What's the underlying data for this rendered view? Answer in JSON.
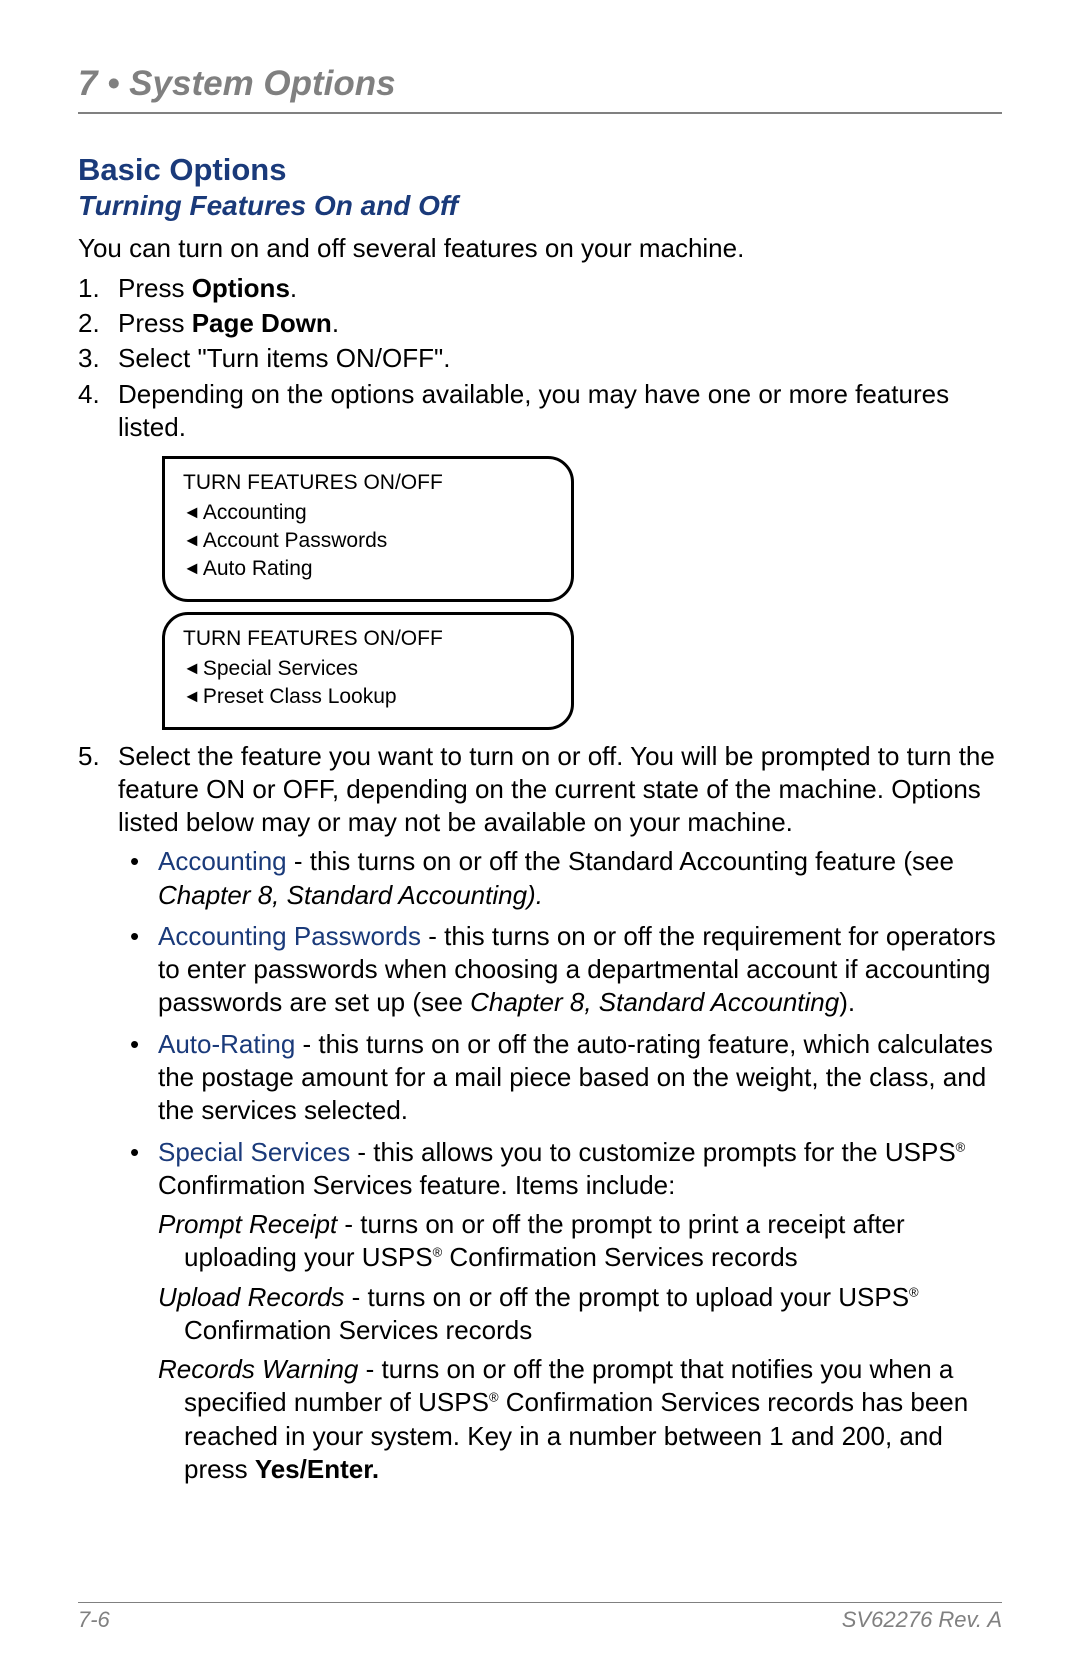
{
  "colors": {
    "gray": "#808080",
    "navy": "#1a3a7a",
    "black": "#000000",
    "bg": "#ffffff"
  },
  "typography": {
    "body_font": "Arial",
    "chapter_fontsize": 35,
    "section_fontsize": 31,
    "subsection_fontsize": 28,
    "body_fontsize": 26,
    "panel_fontsize": 21,
    "footer_fontsize": 22
  },
  "chapter_title": "7 • System Options",
  "section_title": "Basic Options",
  "subsection_title": "Turning Features On and Off",
  "intro": "You can turn on and off several features on your machine.",
  "steps": {
    "s1_a": "Press ",
    "s1_b": "Options",
    "s1_c": ".",
    "s2_a": "Press ",
    "s2_b": "Page Down",
    "s2_c": ".",
    "s3": "Select \"Turn items ON/OFF\".",
    "s4": "Depending on the options available, you may have one or more features listed.",
    "s5": "Select the feature you want to turn on or off. You will be prompted to turn the feature ON or OFF, depending on the current state of the machine. Options listed below may or may not be available on your machine."
  },
  "panel1": {
    "title": "TURN FEATURES ON/OFF",
    "items": [
      "Accounting",
      "Account Passwords",
      "Auto Rating"
    ]
  },
  "panel2": {
    "title": "TURN FEATURES ON/OFF",
    "items": [
      "Special Services",
      "Preset Class Lookup"
    ]
  },
  "bullets": {
    "b1": {
      "term": "Accounting",
      "rest_a": " - this turns on or off the Standard Accounting feature (see ",
      "ital": "Chapter 8, Standard Accounting).",
      "rest_b": ""
    },
    "b2": {
      "term": "Accounting Passwords",
      "rest_a": " - this turns on or off the requirement for operators to enter passwords when choosing a departmental account if accounting passwords are set up (see ",
      "ital": "Chapter 8, Standard Accounting",
      "rest_b": ")."
    },
    "b3": {
      "term": "Auto-Rating",
      "rest": " - this turns on or off the auto-rating feature, which calculates the postage amount for a mail piece based on the weight, the class, and the services selected."
    },
    "b4": {
      "term": "Special Services",
      "rest_a": " - this allows you to customize prompts for the USPS",
      "sup": "®",
      "rest_b": " Confirmation Services feature. Items include:"
    }
  },
  "subitems": {
    "si1": {
      "ital": "Prompt Receipt",
      "rest_a": " - turns on or off the prompt to print a receipt after uploading your USPS",
      "sup": "®",
      "rest_b": " Confirmation Services records"
    },
    "si2": {
      "ital": "Upload Records",
      "rest_a": " - turns on or off the prompt to upload your USPS",
      "sup": "®",
      "rest_b": " Confirmation Services records"
    },
    "si3": {
      "ital": "Records Warning",
      "rest_a": " - turns on or off the prompt that notifies you when a specified number of USPS",
      "sup": "®",
      "rest_b": " Confirmation Services records has been reached in your system. Key in a number between 1 and 200, and press ",
      "bold": "Yes/Enter."
    }
  },
  "footer": {
    "left": "7-6",
    "right": "SV62276 Rev. A"
  }
}
